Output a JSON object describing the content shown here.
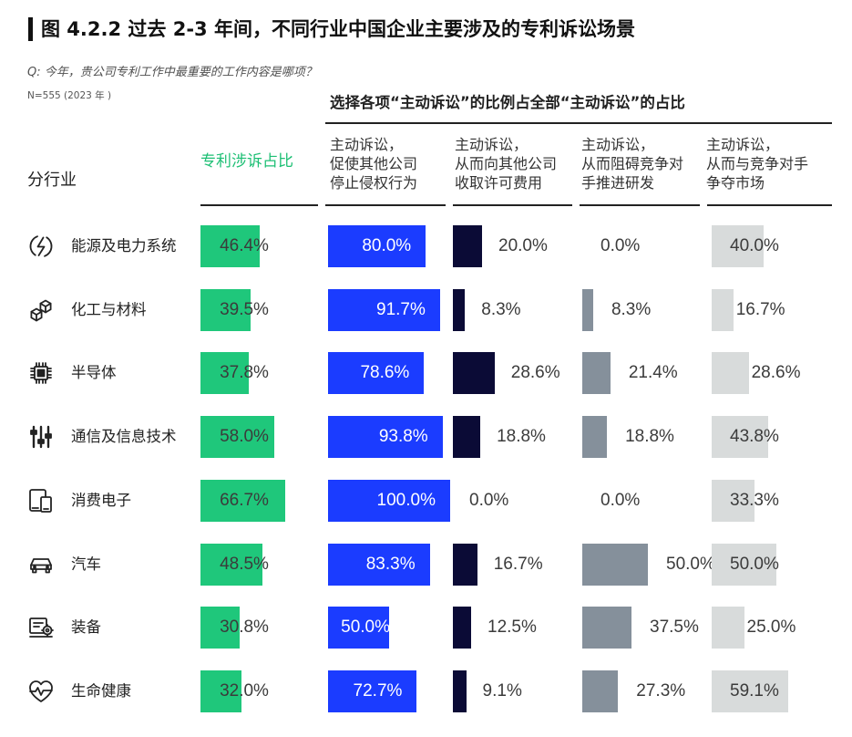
{
  "figure": {
    "title": "图 4.2.2 过去 2-3 年间，不同行业中国企业主要涉及的专利诉讼场景",
    "question": "Q: 今年，贵公司专利工作中最重要的工作内容是哪项？",
    "sample": "N=555 (2023 年 )"
  },
  "headers": {
    "industry": "分行业",
    "group": "选择各项“主动诉讼”的比例占全部“主动诉讼”的占比"
  },
  "industry_icons": [
    "energy-bolt-icon",
    "molecule-icon",
    "chip-icon",
    "sliders-icon",
    "devices-icon",
    "car-icon",
    "machine-icon",
    "heart-pulse-icon"
  ],
  "chart_data": {
    "type": "bar",
    "orientation": "horizontal",
    "xlim": [
      0,
      100
    ],
    "categories": [
      "能源及电力系统",
      "化工与材料",
      "半导体",
      "通信及信息技术",
      "消费电子",
      "汽车",
      "装备",
      "生命健康"
    ],
    "series": [
      {
        "name": "专利涉诉占比",
        "color": "#1fc77b",
        "values": [
          46.4,
          39.5,
          37.8,
          58.0,
          66.7,
          48.5,
          30.8,
          32.0
        ],
        "labels": [
          "46.4%",
          "39.5%",
          "37.8%",
          "58.0%",
          "66.7%",
          "48.5%",
          "30.8%",
          "32.0%"
        ]
      },
      {
        "name": "主动诉讼，\n促使其他公司\n停止侵权行为",
        "color": "#1b3cff",
        "values": [
          80.0,
          91.7,
          78.6,
          93.8,
          100.0,
          83.3,
          50.0,
          72.7
        ],
        "labels": [
          "80.0%",
          "91.7%",
          "78.6%",
          "93.8%",
          "100.0%",
          "83.3%",
          "50.0%",
          "72.7%"
        ]
      },
      {
        "name": "主动诉讼，\n从而向其他公司\n收取许可费用",
        "color": "#0b0b36",
        "values": [
          20.0,
          8.3,
          28.6,
          18.8,
          0.0,
          16.7,
          12.5,
          9.1
        ],
        "labels": [
          "20.0%",
          "8.3%",
          "28.6%",
          "18.8%",
          "0.0%",
          "16.7%",
          "12.5%",
          "9.1%"
        ]
      },
      {
        "name": "主动诉讼，\n从而阻碍竞争对\n手推进研发",
        "color": "#85909b",
        "values": [
          0.0,
          8.3,
          21.4,
          18.8,
          0.0,
          50.0,
          37.5,
          27.3
        ],
        "labels": [
          "0.0%",
          "8.3%",
          "21.4%",
          "18.8%",
          "0.0%",
          "50.0%",
          "37.5%",
          "27.3%"
        ]
      },
      {
        "name": "主动诉讼，\n从而与竞争对手\n争夺市场",
        "color": "#d8dbdb",
        "values": [
          40.0,
          16.7,
          28.6,
          43.8,
          33.3,
          50.0,
          25.0,
          59.1
        ],
        "labels": [
          "40.0%",
          "16.7%",
          "28.6%",
          "43.8%",
          "33.3%",
          "50.0%",
          "25.0%",
          "59.1%"
        ]
      }
    ]
  }
}
